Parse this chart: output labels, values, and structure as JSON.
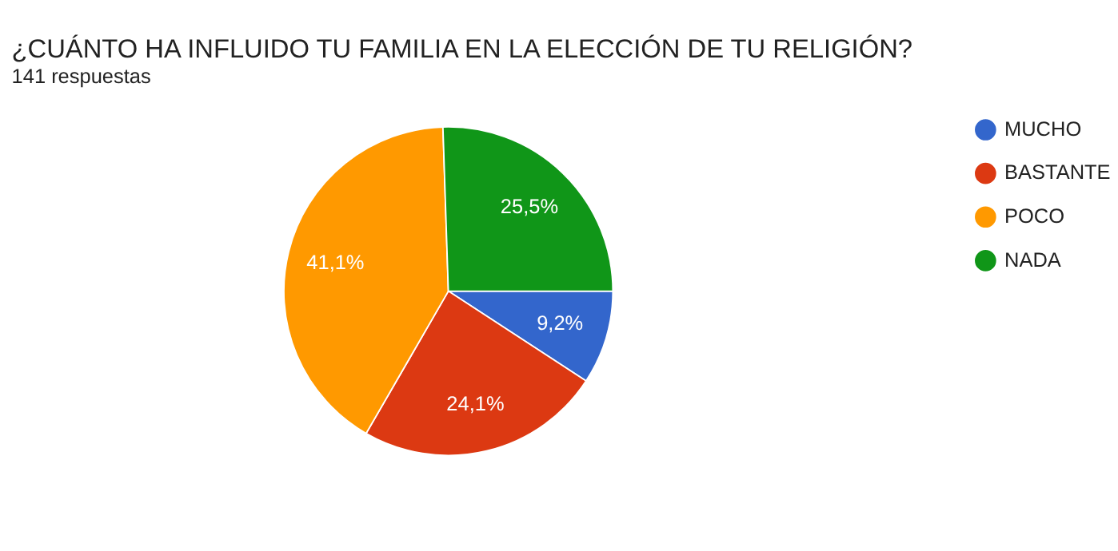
{
  "chart_data": {
    "type": "pie",
    "title": "¿CUÁNTO HA INFLUIDO TU FAMILIA EN LA ELECCIÓN DE TU RELIGIÓN?",
    "subtitle": "141 respuestas",
    "categories": [
      "MUCHO",
      "BASTANTE",
      "POCO",
      "NADA"
    ],
    "values": [
      9.2,
      24.1,
      41.1,
      25.5
    ],
    "value_labels": [
      "9,2%",
      "24,1%",
      "41,1%",
      "25,5%"
    ],
    "colors": [
      "#3366cc",
      "#dc3912",
      "#ff9900",
      "#109618"
    ],
    "legend": "right"
  }
}
